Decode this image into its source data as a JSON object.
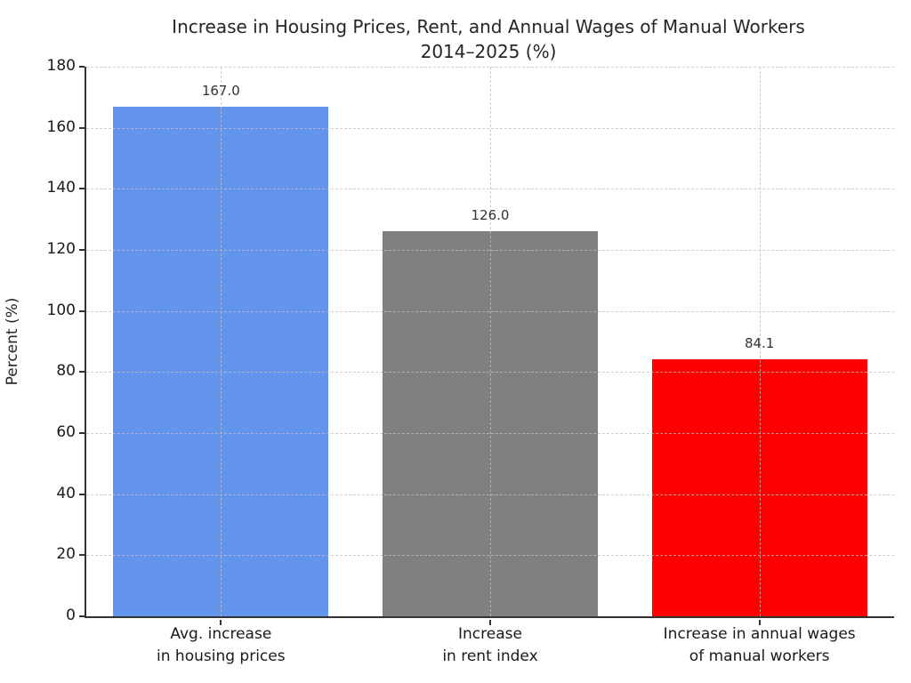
{
  "figure": {
    "title": "Increase in Housing Prices, Rent, and Annual Wages of Manual Workers\n2014–2025 (%)"
  },
  "chart_data": {
    "type": "bar",
    "title": "Increase in Housing Prices, Rent, and Annual Wages of Manual Workers 2014–2025 (%)",
    "categories": [
      "Avg. increase\nin housing prices",
      "Increase\nin rent index",
      "Increase in annual wages\nof manual workers"
    ],
    "values": [
      167.0,
      126.0,
      84.1
    ],
    "value_labels": [
      "167.0",
      "126.0",
      "84.1"
    ],
    "bar_colors": [
      "#6495ED",
      "#808080",
      "#FF0000"
    ],
    "xlabel": "",
    "ylabel": "Percent (%)",
    "ylim": [
      0,
      180
    ],
    "yticks": [
      0,
      20,
      40,
      60,
      80,
      100,
      120,
      140,
      160,
      180
    ],
    "grid": true,
    "grid_style": "dashed",
    "legend": "none",
    "background": "#FFFFFF",
    "axis_color": "#333333",
    "bar_width_fraction": 0.8
  }
}
